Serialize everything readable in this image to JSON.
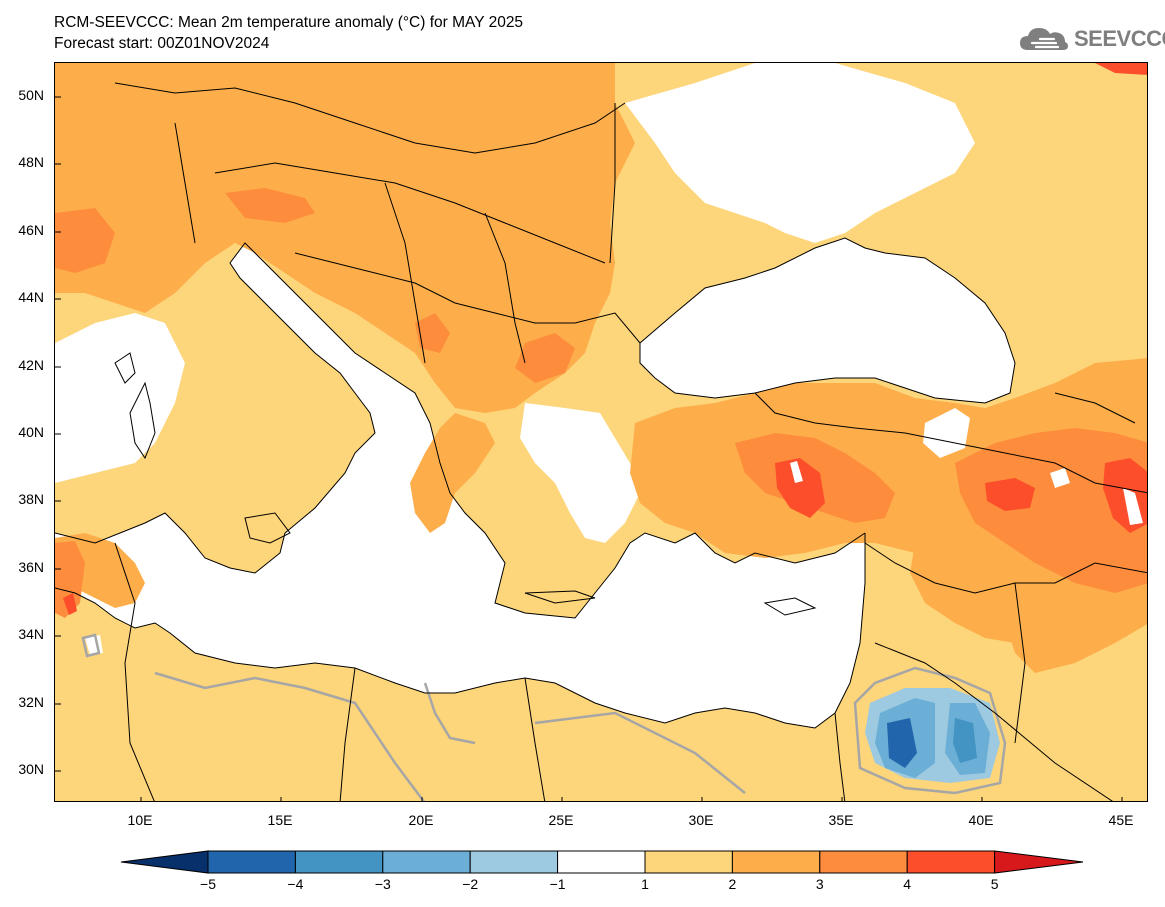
{
  "title": {
    "line1": "RCM-SEEVCCC: Mean 2m temperature anomaly (°C) for MAY 2025",
    "line2": "Forecast start: 00Z01NOV2024"
  },
  "logo": {
    "text": "SEEVCCC",
    "icon": "cloud-icon"
  },
  "map": {
    "lat_labels": [
      "50N",
      "48N",
      "46N",
      "44N",
      "42N",
      "40N",
      "38N",
      "36N",
      "34N",
      "32N",
      "30N"
    ],
    "lon_labels": [
      "10E",
      "15E",
      "20E",
      "25E",
      "30E",
      "35E",
      "40E",
      "45E"
    ],
    "lon_range": [
      7,
      46
    ],
    "lat_range": [
      29,
      51
    ]
  },
  "colorbar": {
    "labels": [
      "−5",
      "−4",
      "−3",
      "−2",
      "−1",
      "1",
      "2",
      "3",
      "4",
      "5"
    ],
    "colors": [
      "#08306b",
      "#2166ac",
      "#4393c3",
      "#6baed6",
      "#9ecae1",
      "#ffffff",
      "#fdd57a",
      "#fdae4b",
      "#fd8d3c",
      "#fc4e2a",
      "#d7191c"
    ]
  },
  "palette": {
    "level1": "#fdd57a",
    "level2": "#fdae4b",
    "level3": "#fd8d3c",
    "level4": "#fc4e2a",
    "neg1": "#9ecae1",
    "neg2": "#6baed6",
    "neg3": "#4393c3",
    "neg4": "#2166ac",
    "sea": "#ffffff",
    "contour": "#a6a6a6"
  }
}
